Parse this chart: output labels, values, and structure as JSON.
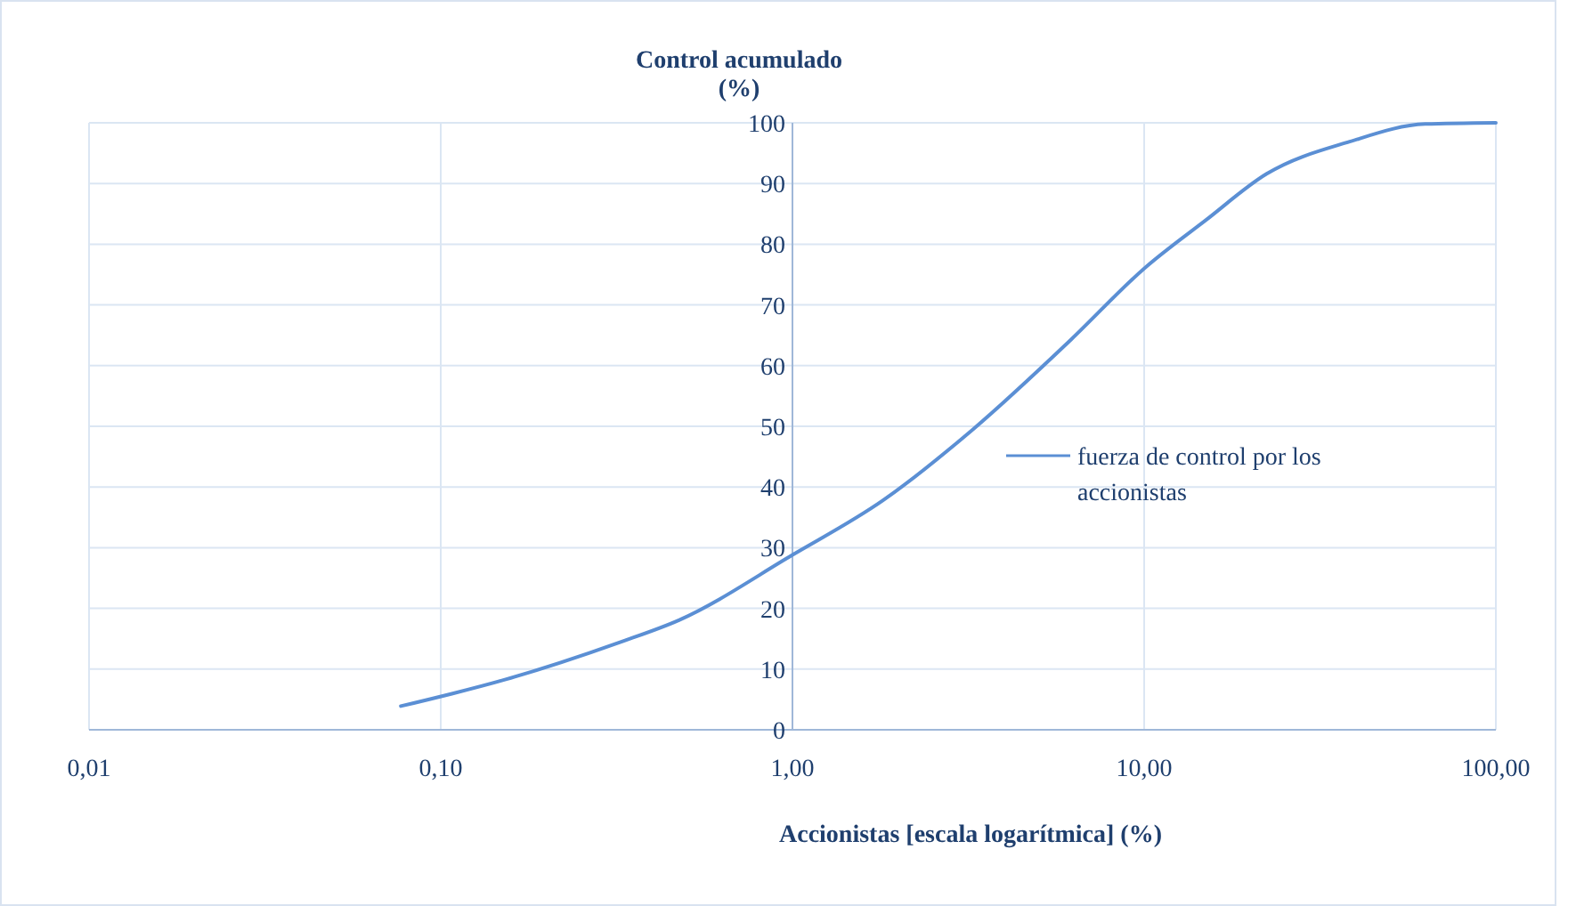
{
  "chart_data": {
    "type": "line",
    "title": "Control acumulado (%)",
    "xlabel": "Accionistas [escala logarítmica] (%)",
    "log": "x",
    "x": [
      0.077,
      0.153,
      0.322,
      0.477,
      1,
      1.81,
      3.26,
      6.2,
      10,
      15,
      22.3,
      38.4,
      63,
      100
    ],
    "series": [
      {
        "name": "fuerza de control por los accionistas",
        "color": "#5b8fd4",
        "values": [
          3.9,
          8.3,
          14.4,
          18.1,
          28.8,
          37.8,
          49.5,
          64.3,
          76,
          84,
          91.6,
          96.9,
          99.8,
          100
        ]
      }
    ],
    "xlim": [
      0.01,
      100
    ],
    "xticks": [
      {
        "value": 0.01,
        "label": "0,01"
      },
      {
        "value": 0.1,
        "label": "0,10"
      },
      {
        "value": 1,
        "label": "1,00"
      },
      {
        "value": 10,
        "label": "10,00"
      },
      {
        "value": 100,
        "label": "100,00"
      }
    ],
    "ylim": [
      0,
      100
    ],
    "yticks": [
      0,
      10,
      20,
      30,
      40,
      50,
      60,
      70,
      80,
      90,
      100
    ],
    "grid": true,
    "legend": "right",
    "marker": "none",
    "line_style": "solid"
  }
}
